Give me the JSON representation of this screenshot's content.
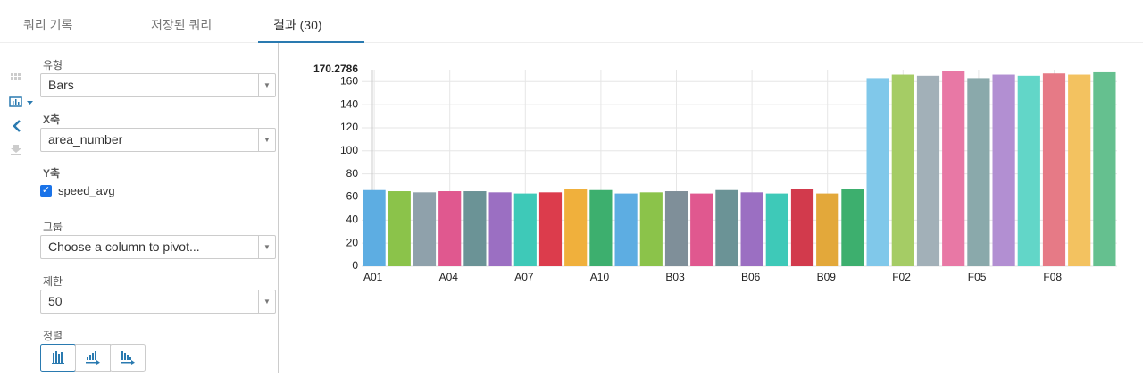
{
  "tabs": [
    "쿼리 기록",
    "저장된 쿼리",
    "결과 (30)"
  ],
  "form": {
    "type_label": "유형",
    "type_value": "Bars",
    "x_label": "X축",
    "x_value": "area_number",
    "y_label": "Y축",
    "y_value": "speed_avg",
    "group_label": "그룹",
    "group_placeholder": "Choose a column to pivot...",
    "limit_label": "제한",
    "limit_value": "50",
    "sort_label": "정렬"
  },
  "chart_data": {
    "type": "bar",
    "categories": [
      "A01",
      null,
      null,
      "A04",
      null,
      null,
      "A07",
      null,
      null,
      "A10",
      null,
      null,
      "B03",
      null,
      null,
      "B06",
      null,
      null,
      "B09",
      null,
      null,
      "F02",
      null,
      null,
      "F05",
      null,
      null,
      "F08",
      null,
      null
    ],
    "values": [
      66,
      65,
      64,
      65,
      65,
      64,
      63,
      64,
      67,
      66,
      63,
      64,
      65,
      63,
      66,
      64,
      63,
      67,
      63,
      67,
      163,
      166,
      165,
      169,
      163,
      166,
      165,
      167,
      166,
      168
    ],
    "colors": [
      "#5dade2",
      "#8bc34a",
      "#8fa1ab",
      "#e0588f",
      "#6b9396",
      "#9b6fc2",
      "#3ec9b8",
      "#dc3c4c",
      "#f0b03c",
      "#3daf6e",
      "#5dade2",
      "#8bc34a",
      "#7f8f99",
      "#e0588f",
      "#6b9396",
      "#9b6fc2",
      "#3ec9b8",
      "#d23a4c",
      "#e3a83a",
      "#3daf6e",
      "#80c8ea",
      "#a5cc65",
      "#a2b0b8",
      "#e878a5",
      "#8aa9ab",
      "#b28fd2",
      "#62d6c8",
      "#e67a86",
      "#f3c260",
      "#65c08f"
    ],
    "ylim": [
      0,
      170.2786
    ],
    "yticks": [
      0,
      20,
      40,
      60,
      80,
      100,
      120,
      140,
      160
    ],
    "grid": true
  }
}
